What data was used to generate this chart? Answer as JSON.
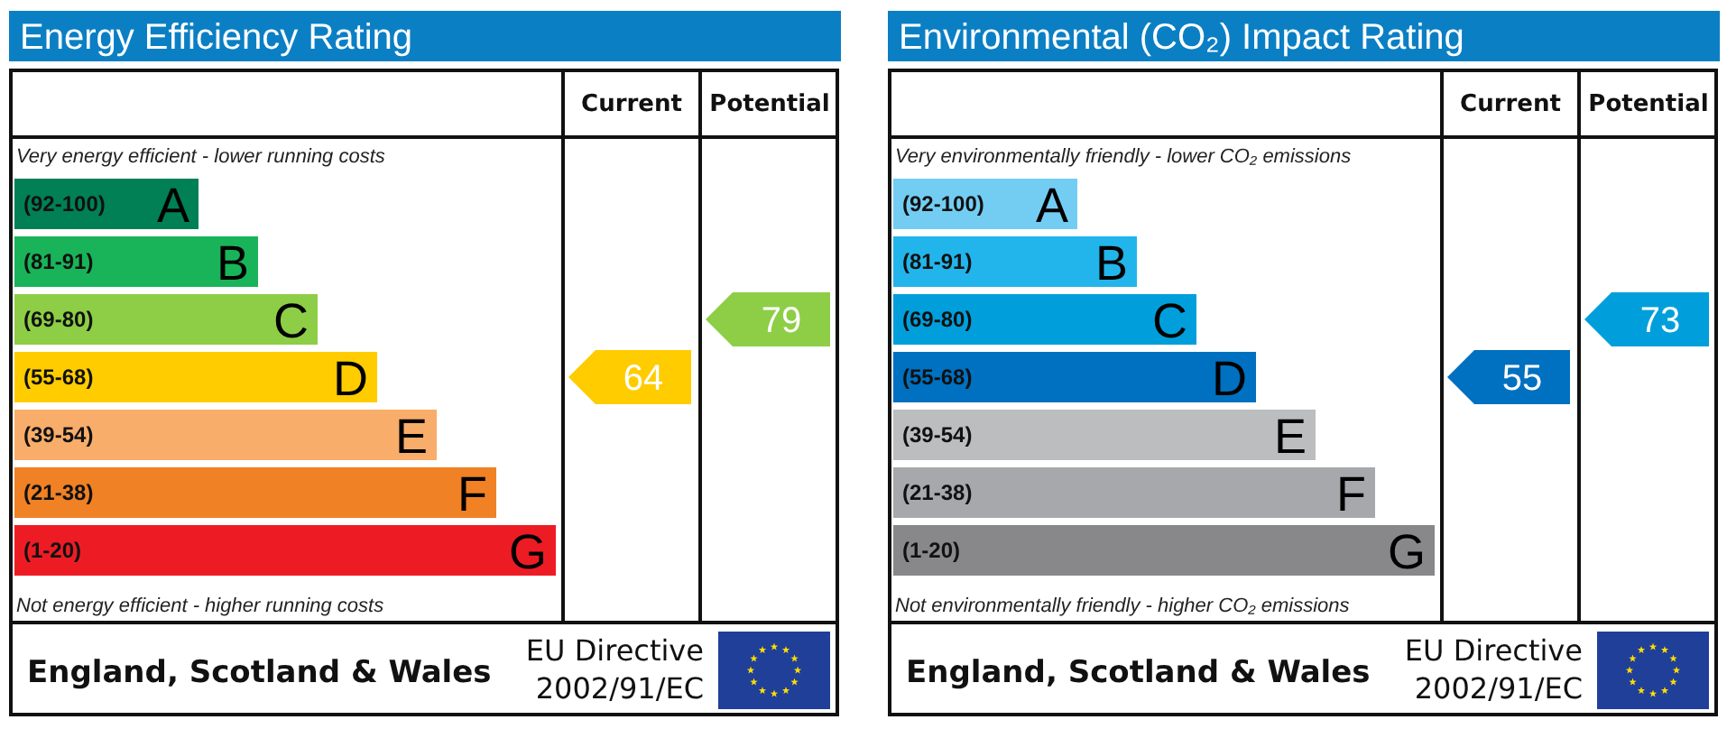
{
  "chart_data": [
    {
      "type": "other",
      "title": "Energy Efficiency Rating",
      "categories": [
        "(92-100)",
        "(81-91)",
        "(69-80)",
        "(55-68)",
        "(39-54)",
        "(21-38)",
        "(1-20)"
      ],
      "colors": [
        "#008054",
        "#19b459",
        "#8dce46",
        "#ffcc00",
        "#f8ad6a",
        "#f08124",
        "#ed1c24"
      ],
      "value_labels": [
        "A",
        "B",
        "C",
        "D",
        "E",
        "F",
        "G"
      ],
      "series": [
        {
          "values": [
            null,
            null,
            null,
            64,
            null,
            null,
            null
          ]
        },
        {
          "values": [
            null,
            null,
            79,
            null,
            null,
            null,
            null
          ]
        }
      ],
      "data_labels": true,
      "annotations": [
        "Very energy efficient - lower running costs",
        "Not energy efficient - higher running costs",
        "England, Scotland & Wales",
        "EU Directive\n2002/91/EC",
        "Current",
        "Potential"
      ]
    },
    {
      "type": "other",
      "title": "Environmental (CO₂) Impact Rating",
      "categories": [
        "(92-100)",
        "(81-91)",
        "(69-80)",
        "(55-68)",
        "(39-54)",
        "(21-38)",
        "(1-20)"
      ],
      "colors": [
        "#73cdf3",
        "#22b5eb",
        "#009fdc",
        "#0070c0",
        "#bbbdbf",
        "#a6a8ab",
        "#88888b"
      ],
      "value_labels": [
        "A",
        "B",
        "C",
        "D",
        "E",
        "F",
        "G"
      ],
      "series": [
        {
          "values": [
            null,
            null,
            null,
            55,
            null,
            null,
            null
          ]
        },
        {
          "values": [
            null,
            null,
            73,
            null,
            null,
            null,
            null
          ]
        }
      ],
      "data_labels": true,
      "annotations": [
        "Very environmentally friendly - lower CO₂ emissions",
        "Not environmentally friendly - higher CO₂ emissions",
        "England, Scotland & Wales",
        "EU Directive\n2002/91/EC",
        "Current",
        "Potential"
      ]
    }
  ]
}
